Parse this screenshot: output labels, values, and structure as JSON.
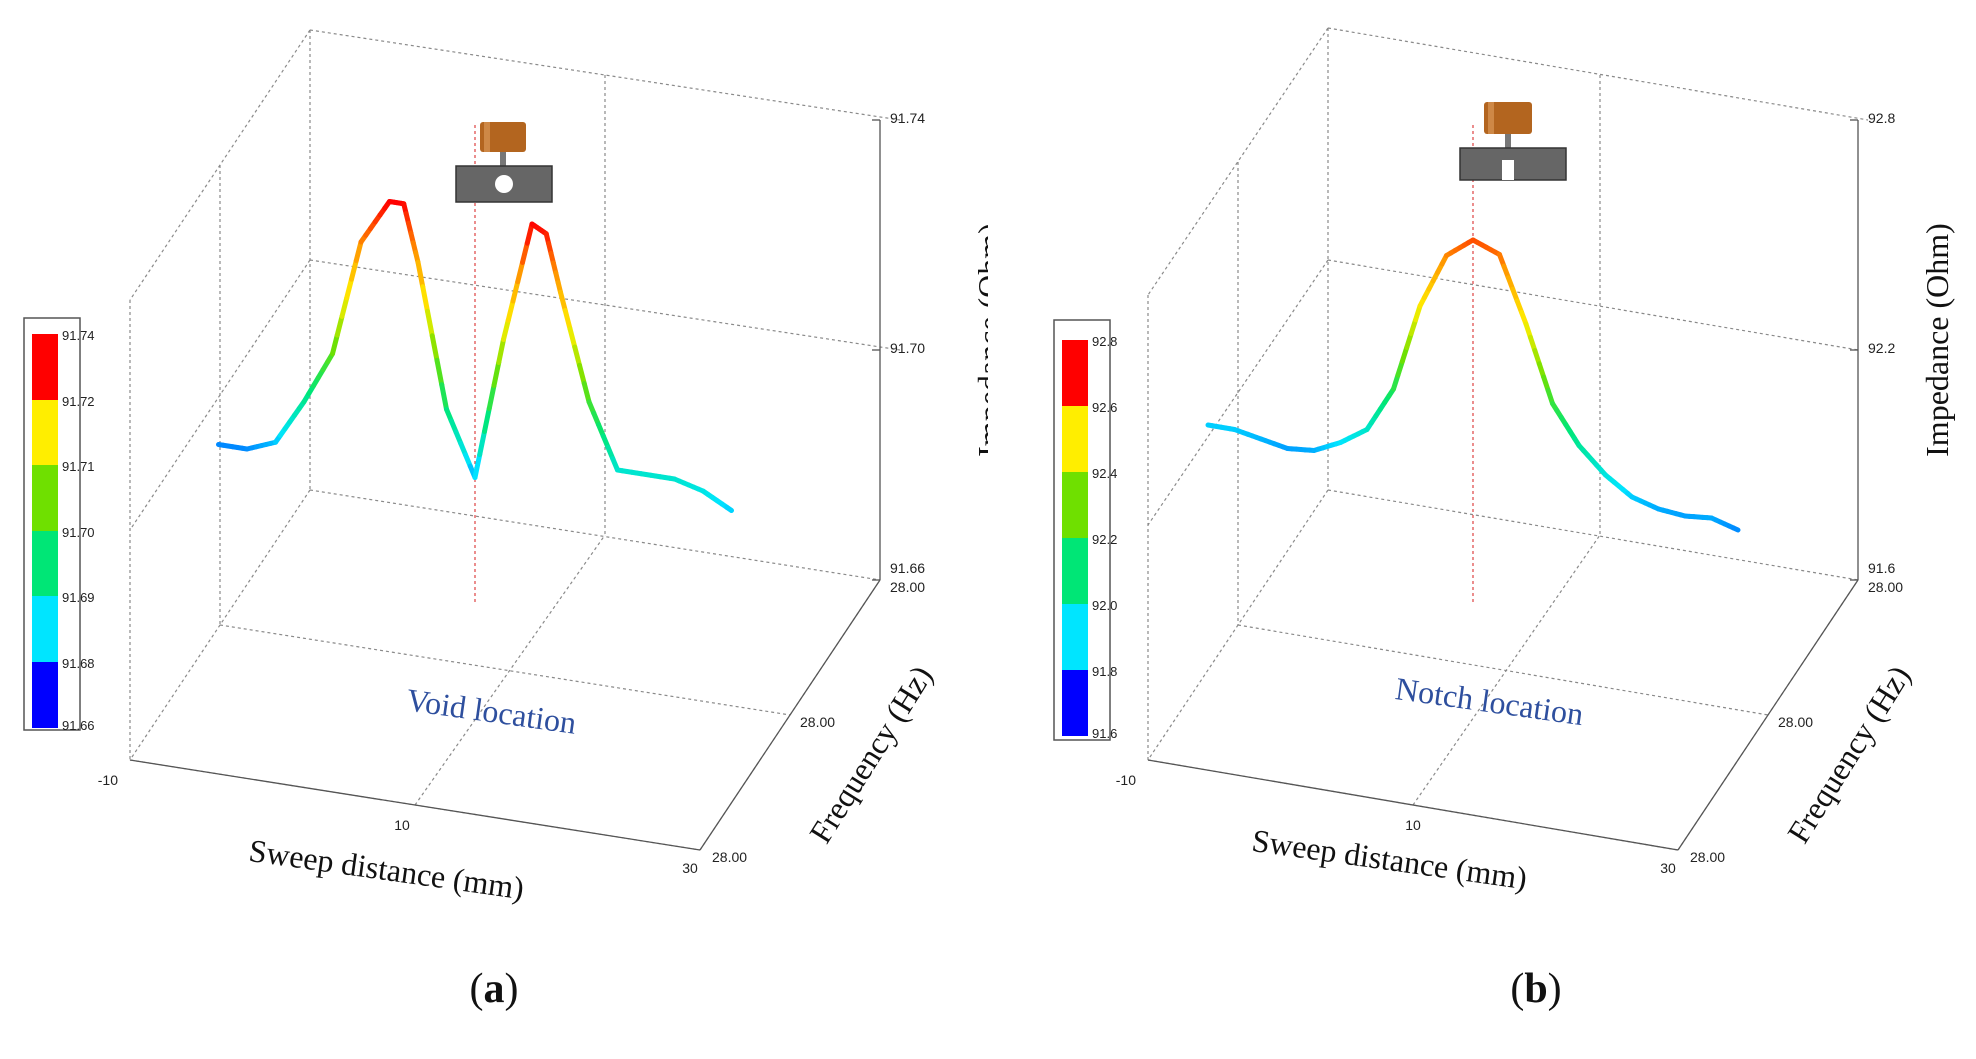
{
  "chart_data": [
    {
      "type": "line",
      "panel": "a",
      "caption_letter": "a",
      "x": [
        -8,
        -6,
        -4,
        -2,
        0,
        2,
        4,
        5,
        6,
        8,
        10,
        12,
        14,
        15,
        16,
        18,
        20,
        22,
        24,
        26,
        28
      ],
      "y": [
        91.668,
        91.668,
        91.671,
        91.683,
        91.697,
        91.728,
        91.74,
        91.74,
        91.725,
        91.687,
        91.67,
        91.708,
        91.74,
        91.738,
        91.723,
        91.695,
        91.678,
        91.678,
        91.678,
        91.676,
        91.672
      ],
      "frequency_hz": 28.0,
      "zlim": [
        91.66,
        91.74
      ],
      "z_ticks": [
        "91.66",
        "91.70",
        "91.74"
      ],
      "x_ticks": [
        "-10",
        "10",
        "30"
      ],
      "freq_ticks": [
        "28.00",
        "28.00",
        "28.00"
      ],
      "xlabel": "Sweep distance (mm)",
      "ylabel": "Frequency (Hz)",
      "zlabel": "Impedance (Ohm)",
      "annotation": "Void location",
      "colorbar": [
        "91.74",
        "91.72",
        "91.71",
        "91.70",
        "91.69",
        "91.68",
        "91.66"
      ],
      "defect": "void"
    },
    {
      "type": "line",
      "panel": "b",
      "caption_letter": "b",
      "x": [
        -10,
        -8,
        -6,
        -4,
        -2,
        0,
        2,
        4,
        6,
        8,
        10,
        12,
        14,
        16,
        18,
        20,
        22,
        24,
        26,
        28,
        30
      ],
      "y": [
        91.78,
        91.78,
        91.76,
        91.74,
        91.75,
        91.8,
        91.87,
        92.05,
        92.4,
        92.62,
        92.7,
        92.66,
        92.4,
        92.1,
        91.95,
        91.85,
        91.78,
        91.75,
        91.74,
        91.75,
        91.72
      ],
      "frequency_hz": 28.0,
      "zlim": [
        91.6,
        92.8
      ],
      "z_ticks": [
        "91.6",
        "92.2",
        "92.8"
      ],
      "x_ticks": [
        "-10",
        "10",
        "30"
      ],
      "freq_ticks": [
        "28.00",
        "28.00",
        "28.00"
      ],
      "xlabel": "Sweep distance (mm)",
      "ylabel": "Frequency (Hz)",
      "zlabel": "Impedance (Ohm)",
      "annotation": "Notch location",
      "colorbar": [
        "92.8",
        "92.6",
        "92.4",
        "92.2",
        "92.0",
        "91.8",
        "91.6"
      ],
      "defect": "notch"
    }
  ],
  "colors": {
    "scale": [
      "#0000ff",
      "#00e5ff",
      "#00e676",
      "#6fe000",
      "#ffee00",
      "#ff9900",
      "#ff0000"
    ],
    "probe_copper": "#b3651f",
    "specimen_gray": "#666666",
    "marker_line": "#e05050",
    "annotation_blue": "#2e4f9e"
  }
}
